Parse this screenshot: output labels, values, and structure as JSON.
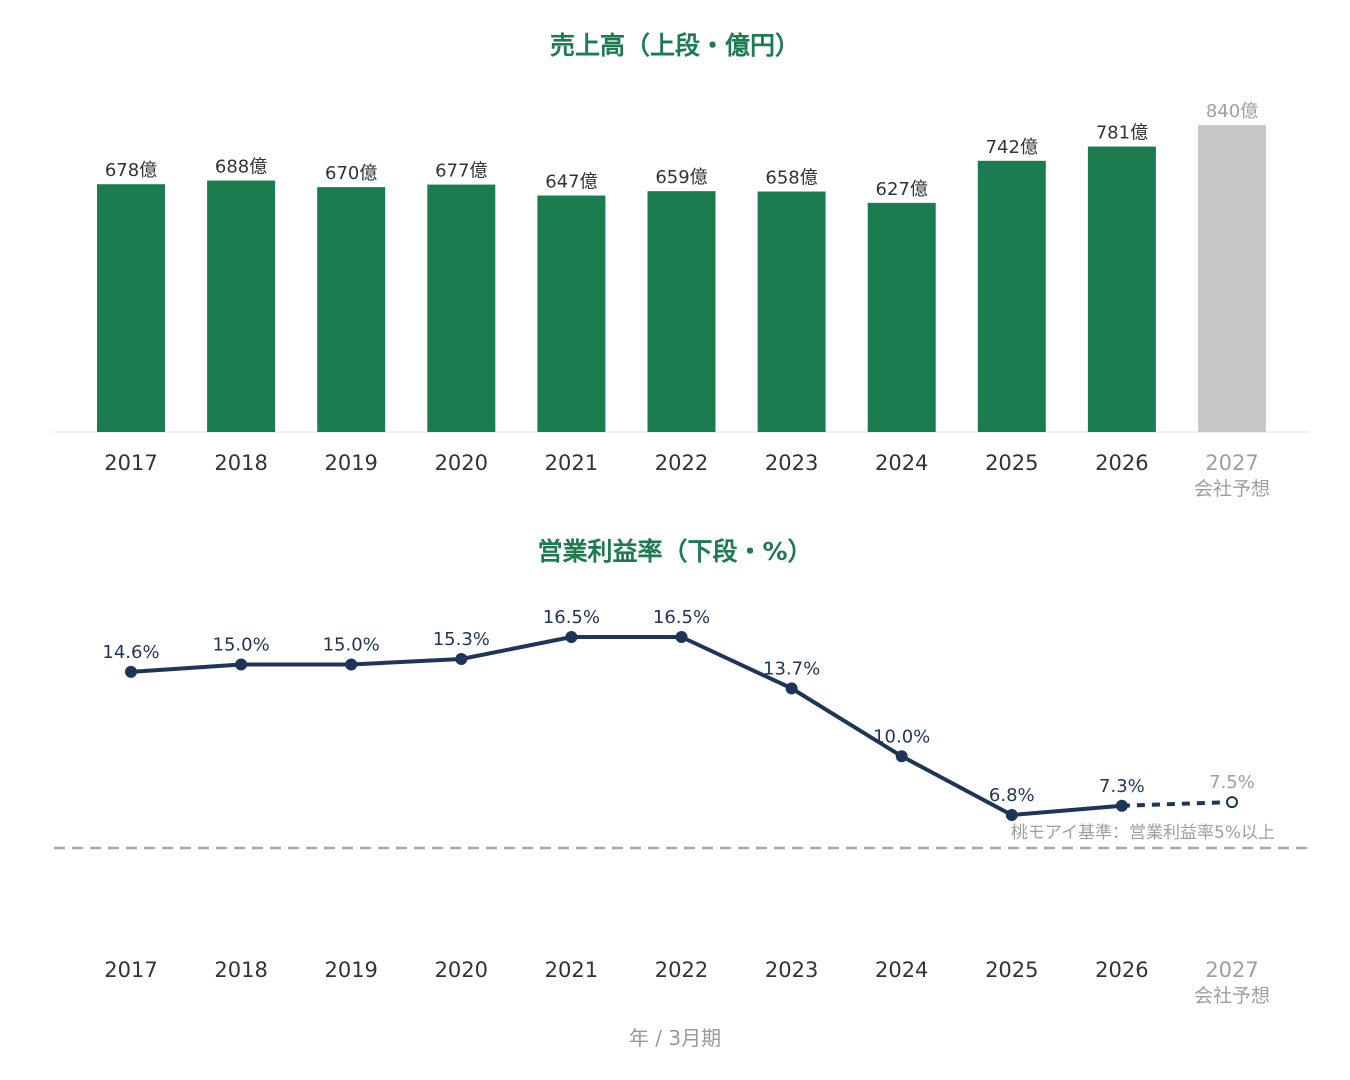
{
  "chart_data": [
    {
      "type": "bar",
      "title": "売上高（上段・億円）",
      "categories": [
        "2017",
        "2018",
        "2019",
        "2020",
        "2021",
        "2022",
        "2023",
        "2024",
        "2025",
        "2026",
        "2027"
      ],
      "category_sublabels": [
        "",
        "",
        "",
        "",
        "",
        "",
        "",
        "",
        "",
        "",
        "会社予想"
      ],
      "values": [
        678,
        688,
        670,
        677,
        647,
        659,
        658,
        627,
        742,
        781,
        840
      ],
      "data_labels": [
        "678億",
        "688億",
        "670億",
        "677億",
        "647億",
        "659億",
        "658億",
        "627億",
        "742億",
        "781億",
        "840億"
      ],
      "forecast_from_index": 10,
      "xlabel": "",
      "ylabel": "",
      "ylim": [
        0,
        840
      ],
      "grid": false,
      "legend": "none"
    },
    {
      "type": "line",
      "title": "営業利益率（下段・%）",
      "categories": [
        "2017",
        "2018",
        "2019",
        "2020",
        "2021",
        "2022",
        "2023",
        "2024",
        "2025",
        "2026",
        "2027"
      ],
      "category_sublabels": [
        "",
        "",
        "",
        "",
        "",
        "",
        "",
        "",
        "",
        "",
        "会社予想"
      ],
      "values": [
        14.6,
        15.0,
        15.0,
        15.3,
        16.5,
        16.5,
        13.7,
        10.0,
        6.8,
        7.3,
        7.5
      ],
      "data_labels": [
        "14.6%",
        "15.0%",
        "15.0%",
        "15.3%",
        "16.5%",
        "16.5%",
        "13.7%",
        "10.0%",
        "6.8%",
        "7.3%",
        "7.5%"
      ],
      "forecast_from_index": 10,
      "reference_line": {
        "value": 5,
        "label": "桃モアイ基準：営業利益率5%以上"
      },
      "xlabel": "年 / 3月期",
      "ylabel": "",
      "grid": false,
      "legend": "none"
    }
  ],
  "colors": {
    "title": "#1e7b50",
    "bar": "#1b7c51",
    "forecast": "#c8c8c8",
    "forecast_text": "#9e9e9e",
    "line": "#1e3557",
    "reference": "#a8a8a8",
    "axis_text": "#333333",
    "footer_text": "#999999"
  }
}
